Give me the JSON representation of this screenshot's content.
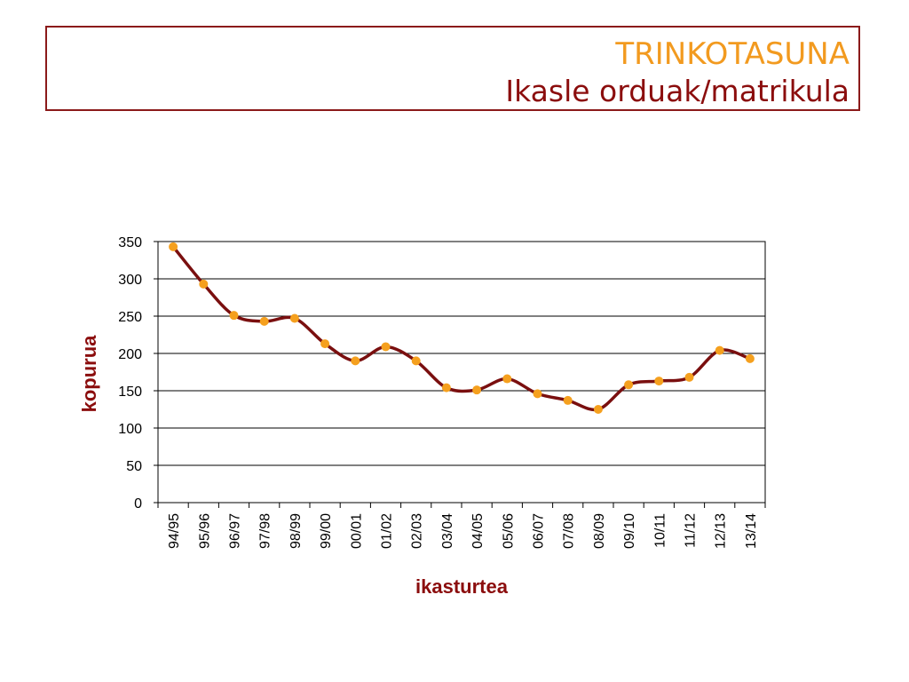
{
  "slide": {
    "title": "TRINKOTASUNA",
    "subtitle": "Ikasle orduak/matrikula"
  },
  "colors": {
    "title": "#f29a1f",
    "subtitle": "#8b0d0d",
    "border": "#8b1a1a",
    "line": "#7a0f0f",
    "marker": "#f5a01e",
    "axis_title": "#8b0d0d"
  },
  "chart_data": {
    "type": "line",
    "categories": [
      "94/95",
      "95/96",
      "96/97",
      "97/98",
      "98/99",
      "99/00",
      "00/01",
      "01/02",
      "02/03",
      "03/04",
      "04/05",
      "05/06",
      "06/07",
      "07/08",
      "08/09",
      "09/10",
      "10/11",
      "11/12",
      "12/13",
      "13/14"
    ],
    "series": [
      {
        "values": [
          343,
          293,
          251,
          243,
          247,
          213,
          190,
          209,
          190,
          154,
          151,
          166,
          146,
          137,
          125,
          158,
          163,
          168,
          204,
          193
        ]
      }
    ],
    "xlabel": "ikasturtea",
    "ylabel": "kopurua",
    "ylim": [
      0,
      350
    ],
    "yticks": [
      "0",
      "50",
      "100",
      "150",
      "200",
      "250",
      "300",
      "350"
    ],
    "grid": "horizontal",
    "legend": "none"
  }
}
